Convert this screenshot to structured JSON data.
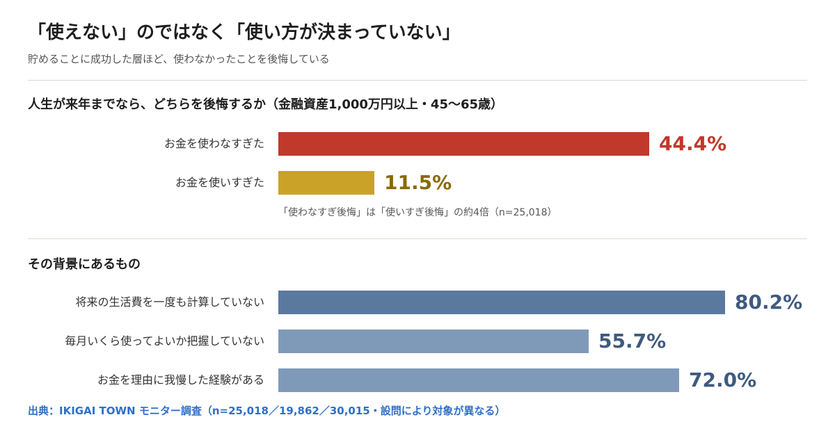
{
  "header": {
    "title": "「使えない」のではなく「使い方が決まっていない」",
    "subtitle": "貯めることに成功した層ほど、使わなかったことを後悔している"
  },
  "source": "出典：IKIGAI TOWN モニター調査（n=25,018／19,862／30,015・設問により対象が異なる）",
  "colors": {
    "regret_not_spending": "#c0392b",
    "regret_spending": "#c9a227",
    "background_dark": "#5b799e",
    "background_light": "#7f9ab9",
    "value_dark_text": "#3f5a80",
    "value_gold_text": "#8a6a00"
  },
  "chart_data": [
    {
      "type": "bar",
      "orientation": "horizontal",
      "title": "人生が来年までなら、どちらを後悔するか（金融資産1,000万円以上・45〜65歳）",
      "categories": [
        "お金を使わなすぎた",
        "お金を使いすぎた"
      ],
      "values": [
        44.4,
        11.5
      ],
      "value_labels": [
        "44.4%",
        "11.5%"
      ],
      "unit": "%",
      "xlim": [
        0,
        100
      ],
      "annotation": "「使わなすぎ後悔」は「使いすぎ後悔」の約4倍（n=25,018）",
      "grid": false,
      "legend": "none"
    },
    {
      "type": "bar",
      "orientation": "horizontal",
      "title": "その背景にあるもの",
      "categories": [
        "将来の生活費を一度も計算していない",
        "毎月いくら使ってよいか把握していない",
        "お金を理由に我慢した経験がある"
      ],
      "values": [
        80.2,
        55.7,
        72.0
      ],
      "value_labels": [
        "80.2%",
        "55.7%",
        "72.0%"
      ],
      "unit": "%",
      "xlim": [
        0,
        100
      ],
      "grid": false,
      "legend": "none"
    }
  ]
}
